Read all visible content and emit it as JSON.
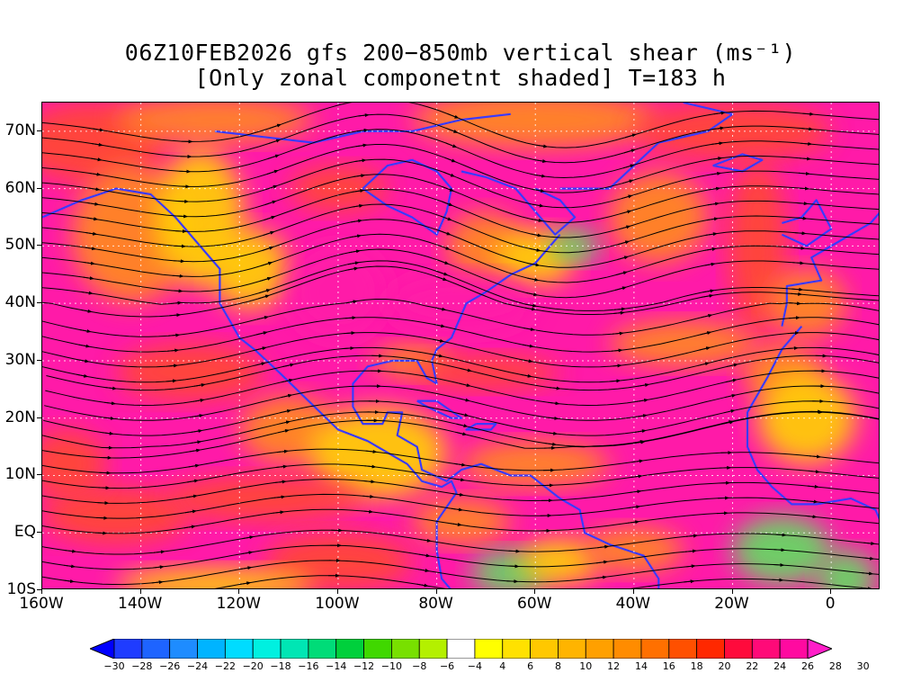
{
  "title": {
    "line1": "06Z10FEB2026 gfs 200−850mb vertical shear (ms⁻¹)",
    "line2": "[Only zonal componetnt shaded] T=183 h"
  },
  "map": {
    "lon_range": [
      -160,
      10
    ],
    "lat_range": [
      -10,
      75
    ],
    "lat_labels": [
      {
        "lat": 70,
        "text": "70N"
      },
      {
        "lat": 60,
        "text": "60N"
      },
      {
        "lat": 50,
        "text": "50N"
      },
      {
        "lat": 40,
        "text": "40N"
      },
      {
        "lat": 30,
        "text": "30N"
      },
      {
        "lat": 20,
        "text": "20N"
      },
      {
        "lat": 10,
        "text": "10N"
      },
      {
        "lat": 0,
        "text": "EQ"
      },
      {
        "lat": -10,
        "text": "10S"
      }
    ],
    "lon_labels": [
      {
        "lon": -160,
        "text": "160W"
      },
      {
        "lon": -140,
        "text": "140W"
      },
      {
        "lon": -120,
        "text": "120W"
      },
      {
        "lon": -100,
        "text": "100W"
      },
      {
        "lon": -80,
        "text": "80W"
      },
      {
        "lon": -60,
        "text": "60W"
      },
      {
        "lon": -40,
        "text": "40W"
      },
      {
        "lon": -20,
        "text": "20W"
      },
      {
        "lon": 0,
        "text": "0"
      }
    ],
    "colors": {
      "coastline": "#3a3aff",
      "streamline": "#000000",
      "strong": "#ff1aa8",
      "mid": "#ff4a30",
      "orange": "#ff8c1a",
      "yellow": "#ffd400",
      "green": "#60e060",
      "cyan": "#00e0c0"
    }
  },
  "colorbar": {
    "labels": [
      "−30",
      "−28",
      "−26",
      "−24",
      "−22",
      "−20",
      "−18",
      "−16",
      "−14",
      "−12",
      "−10",
      "−8",
      "−6",
      "−4",
      "4",
      "6",
      "8",
      "10",
      "12",
      "14",
      "16",
      "18",
      "20",
      "22",
      "24",
      "26",
      "28",
      "30"
    ],
    "colors": [
      "#0000ff",
      "#1f3cff",
      "#1e64ff",
      "#1e8cff",
      "#00b4ff",
      "#00dcff",
      "#00f0e0",
      "#00e6b4",
      "#00dc78",
      "#00d03c",
      "#40d800",
      "#78e000",
      "#b4f000",
      "#ffffff",
      "#ffff00",
      "#ffe100",
      "#ffc800",
      "#ffb400",
      "#ffa000",
      "#ff8c00",
      "#ff7000",
      "#ff5000",
      "#ff2800",
      "#ff0a3c",
      "#ff0a78",
      "#ff0aa0",
      "#ff1ec8"
    ]
  }
}
